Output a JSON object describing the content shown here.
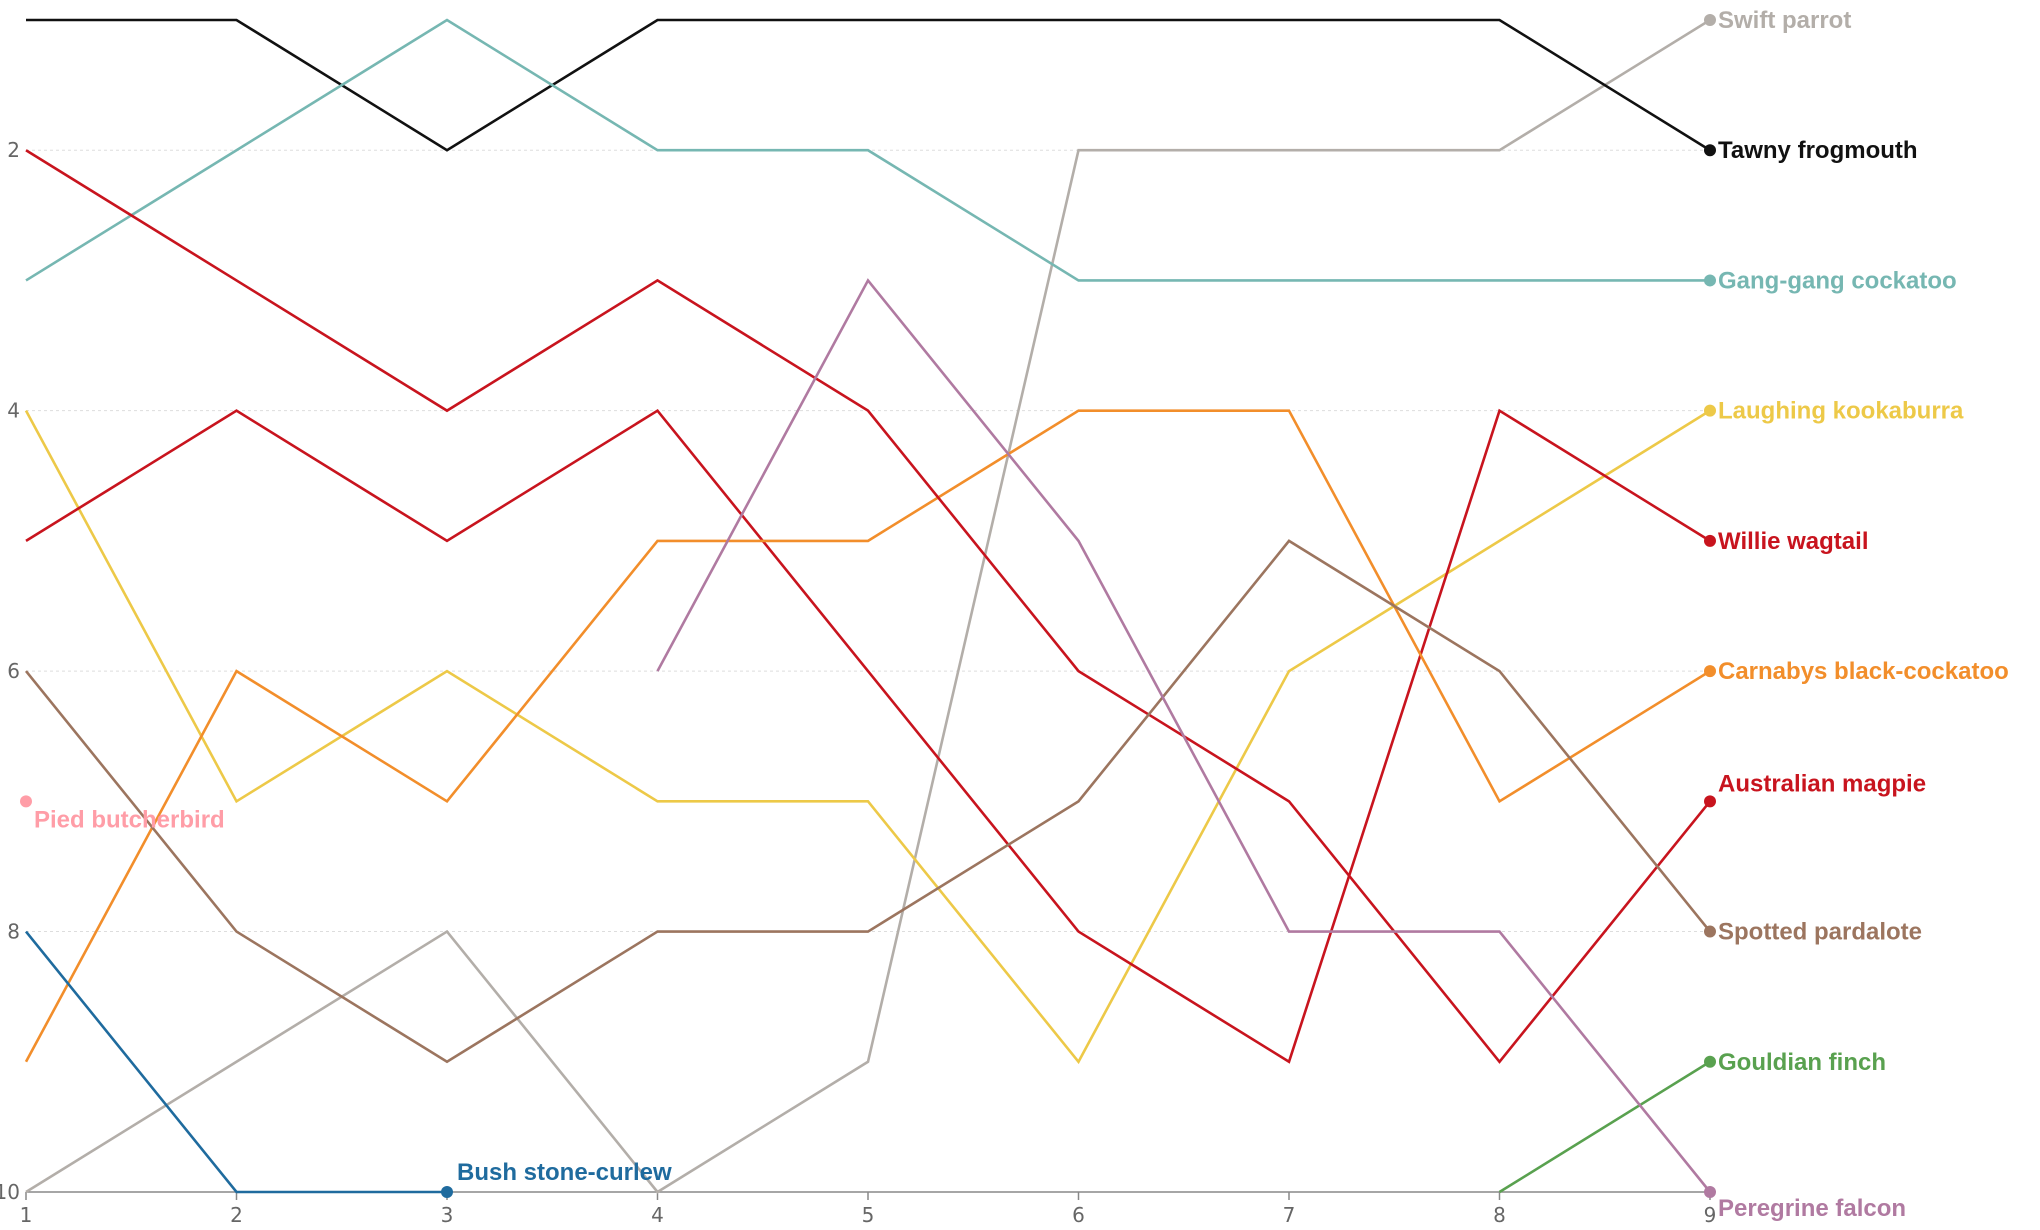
{
  "chart_data": {
    "type": "line",
    "title": "",
    "xlabel": "",
    "ylabel": "",
    "x": [
      1,
      2,
      3,
      4,
      5,
      6,
      7,
      8,
      9
    ],
    "x_tick_labels": [
      "1",
      "2",
      "3",
      "4",
      "5",
      "6",
      "7",
      "8",
      "9"
    ],
    "y_tick_labels": [
      "2",
      "4",
      "6",
      "8",
      "10"
    ],
    "ylim": [
      10,
      1
    ],
    "y_inverted": true,
    "grid": "horizontal dashed",
    "legend": "none (series labelled at line ends)",
    "series": [
      {
        "name": "Swift parrot",
        "color": "#b3aea9",
        "x": [
          1,
          2,
          3,
          4,
          5,
          6,
          7,
          8,
          9
        ],
        "values": [
          10,
          9,
          8,
          10,
          9,
          2,
          2,
          2,
          1
        ]
      },
      {
        "name": "Tawny frogmouth",
        "color": "#111111",
        "x": [
          1,
          2,
          3,
          4,
          5,
          6,
          7,
          8,
          9
        ],
        "values": [
          1,
          1,
          2,
          1,
          1,
          1,
          1,
          1,
          2
        ]
      },
      {
        "name": "Gang-gang cockatoo",
        "color": "#76b7b2",
        "x": [
          1,
          2,
          3,
          4,
          5,
          6,
          7,
          8,
          9
        ],
        "values": [
          3,
          2,
          1,
          2,
          2,
          3,
          3,
          3,
          3
        ]
      },
      {
        "name": "Laughing kookaburra",
        "color": "#edc948",
        "x": [
          1,
          2,
          3,
          4,
          5,
          6,
          7,
          8,
          9
        ],
        "values": [
          4,
          7,
          6,
          7,
          7,
          9,
          6,
          5,
          4
        ]
      },
      {
        "name": "Willie wagtail",
        "color": "#c8141e",
        "x": [
          1,
          2,
          3,
          4,
          5,
          6,
          7,
          8,
          9
        ],
        "values": [
          5,
          4,
          5,
          4,
          6,
          8,
          9,
          4,
          5
        ]
      },
      {
        "name": "Carnabys black-cockatoo",
        "color": "#f28e2b",
        "x": [
          1,
          2,
          3,
          4,
          5,
          6,
          7,
          8,
          9
        ],
        "values": [
          9,
          6,
          7,
          5,
          5,
          4,
          4,
          7,
          6
        ]
      },
      {
        "name": "Australian magpie",
        "color": "#c8141e",
        "x": [
          1,
          2,
          3,
          4,
          5,
          6,
          7,
          8,
          9
        ],
        "values": [
          2,
          3,
          4,
          3,
          4,
          6,
          7,
          9,
          7
        ]
      },
      {
        "name": "Spotted pardalote",
        "color": "#9c755f",
        "x": [
          1,
          2,
          3,
          4,
          5,
          6,
          7,
          8,
          9
        ],
        "values": [
          6,
          8,
          9,
          8,
          8,
          7,
          5,
          6,
          8
        ]
      },
      {
        "name": "Gouldian finch",
        "color": "#59a14f",
        "x": [
          8,
          9
        ],
        "values": [
          10,
          9
        ]
      },
      {
        "name": "Peregrine falcon",
        "color": "#b07aa1",
        "x": [
          4,
          5,
          6,
          7,
          8,
          9
        ],
        "values": [
          6,
          3,
          5,
          8,
          8,
          10
        ]
      },
      {
        "name": "Bush stone-curlew",
        "color": "#1f6b9e",
        "x": [
          1,
          2,
          3
        ],
        "values": [
          8,
          10,
          10
        ]
      },
      {
        "name": "Pied butcherbird",
        "color": "#ff9da7",
        "x": [
          1
        ],
        "values": [
          7
        ]
      }
    ]
  }
}
